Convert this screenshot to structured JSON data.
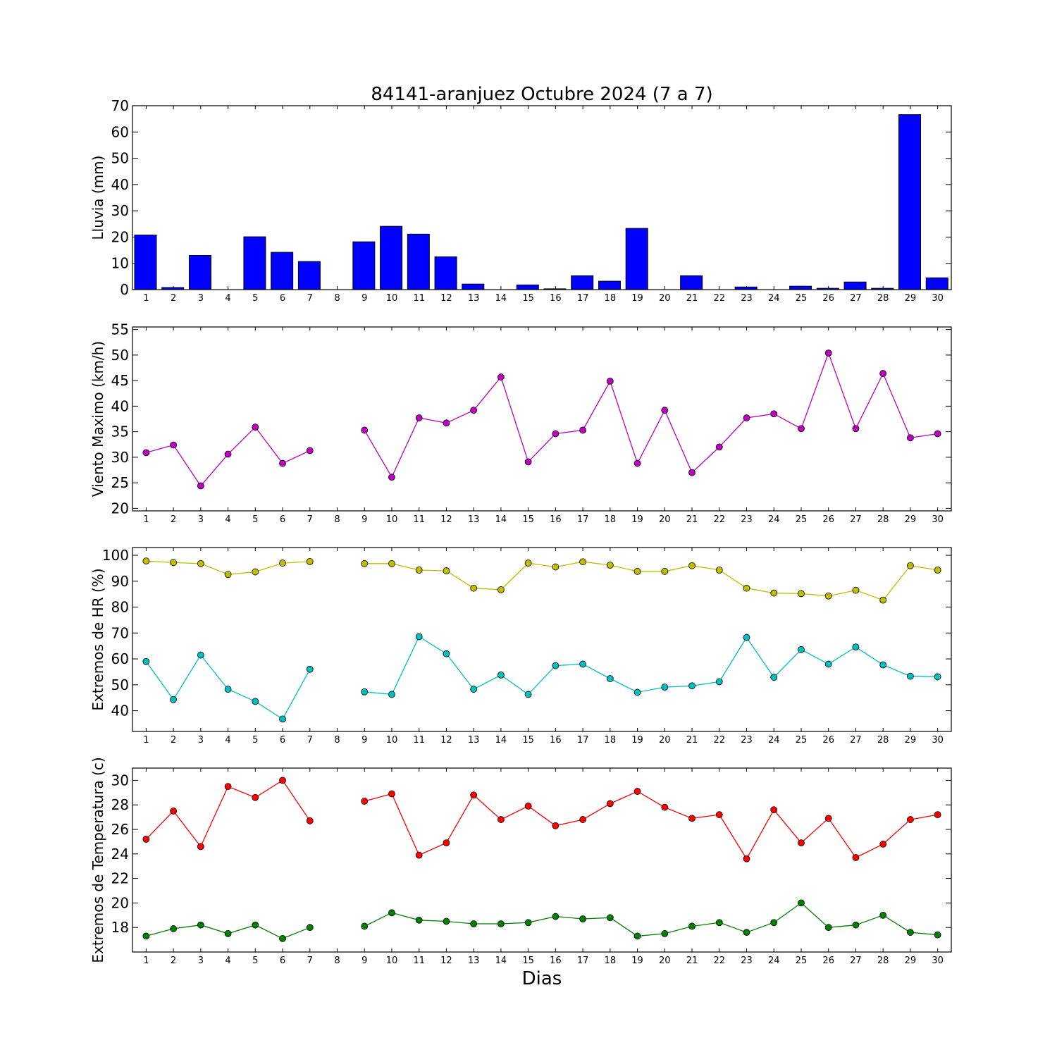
{
  "title": "84141-aranjuez Octubre 2024  (7 a 7)",
  "xlabel": "Dias",
  "days": [
    1,
    2,
    3,
    4,
    5,
    6,
    7,
    8,
    9,
    10,
    11,
    12,
    13,
    14,
    15,
    16,
    17,
    18,
    19,
    20,
    21,
    22,
    23,
    24,
    25,
    26,
    27,
    28,
    29,
    30
  ],
  "chart_data": [
    {
      "id": "lluvia",
      "type": "bar",
      "ylabel": "Lluvia (mm)",
      "ylim": [
        0,
        70
      ],
      "yticks": [
        0,
        10,
        20,
        30,
        40,
        50,
        60,
        70
      ],
      "series": [
        {
          "color": "#0000ff",
          "values": [
            20.8,
            0.8,
            13.0,
            0.0,
            20.1,
            14.2,
            10.7,
            0.0,
            18.2,
            24.1,
            21.1,
            12.5,
            2.1,
            0.0,
            1.8,
            0.3,
            5.3,
            3.2,
            23.3,
            0.0,
            5.3,
            0.0,
            1.0,
            0.0,
            1.3,
            0.5,
            2.9,
            0.5,
            66.6,
            4.5
          ]
        }
      ]
    },
    {
      "id": "viento",
      "type": "line",
      "ylabel": "Viento Maximo (km/h)",
      "ylim": [
        19.5,
        55.5
      ],
      "yticks": [
        20,
        25,
        30,
        35,
        40,
        45,
        50,
        55
      ],
      "series": [
        {
          "color": "#bf00bf",
          "values": [
            30.9,
            32.4,
            24.4,
            30.6,
            35.9,
            28.8,
            31.3,
            null,
            35.3,
            26.1,
            37.7,
            36.7,
            39.2,
            45.7,
            29.1,
            34.6,
            35.3,
            44.9,
            28.8,
            39.2,
            27.0,
            32.0,
            37.7,
            38.5,
            35.6,
            50.4,
            35.6,
            46.4,
            33.8,
            34.6
          ]
        }
      ]
    },
    {
      "id": "hr",
      "type": "line",
      "ylabel": "Extremos de HR (%)",
      "ylim": [
        32,
        103
      ],
      "yticks": [
        40,
        50,
        60,
        70,
        80,
        90,
        100
      ],
      "series": [
        {
          "color": "#bfbf00",
          "values": [
            97.8,
            97.2,
            96.8,
            92.6,
            93.6,
            97.0,
            97.6,
            null,
            96.8,
            96.8,
            94.3,
            94.0,
            87.3,
            86.7,
            97.0,
            95.5,
            97.5,
            96.2,
            93.8,
            93.8,
            96.0,
            94.3,
            87.3,
            85.4,
            85.2,
            84.3,
            86.5,
            82.7,
            96.0,
            94.3
          ]
        },
        {
          "color": "#00bfbf",
          "values": [
            59.0,
            44.3,
            61.5,
            48.3,
            43.6,
            36.8,
            56.0,
            null,
            47.3,
            46.3,
            68.6,
            62.0,
            48.3,
            53.8,
            46.3,
            57.4,
            58.0,
            52.4,
            47.1,
            49.1,
            49.6,
            51.2,
            68.3,
            52.9,
            63.6,
            58.0,
            64.6,
            57.7,
            53.3,
            53.1
          ]
        }
      ]
    },
    {
      "id": "temperatura",
      "type": "line",
      "ylabel": "Extremos de Temperatura (c)",
      "ylim": [
        16,
        31
      ],
      "yticks": [
        18,
        20,
        22,
        24,
        26,
        28,
        30
      ],
      "series": [
        {
          "color": "#ff0000",
          "values": [
            25.2,
            27.5,
            24.6,
            29.5,
            28.6,
            30.0,
            26.7,
            null,
            28.3,
            28.9,
            23.9,
            24.9,
            28.8,
            26.8,
            27.9,
            26.3,
            26.8,
            28.1,
            29.1,
            27.8,
            26.9,
            27.2,
            23.6,
            27.6,
            24.9,
            26.9,
            23.7,
            24.8,
            26.8,
            27.2
          ]
        },
        {
          "color": "#007f00",
          "values": [
            17.3,
            17.9,
            18.2,
            17.5,
            18.2,
            17.1,
            18.0,
            null,
            18.1,
            19.2,
            18.6,
            18.5,
            18.3,
            18.3,
            18.4,
            18.9,
            18.7,
            18.8,
            17.3,
            17.5,
            18.1,
            18.4,
            17.6,
            18.4,
            20.0,
            18.0,
            18.2,
            19.0,
            17.6,
            17.4
          ]
        }
      ]
    }
  ]
}
